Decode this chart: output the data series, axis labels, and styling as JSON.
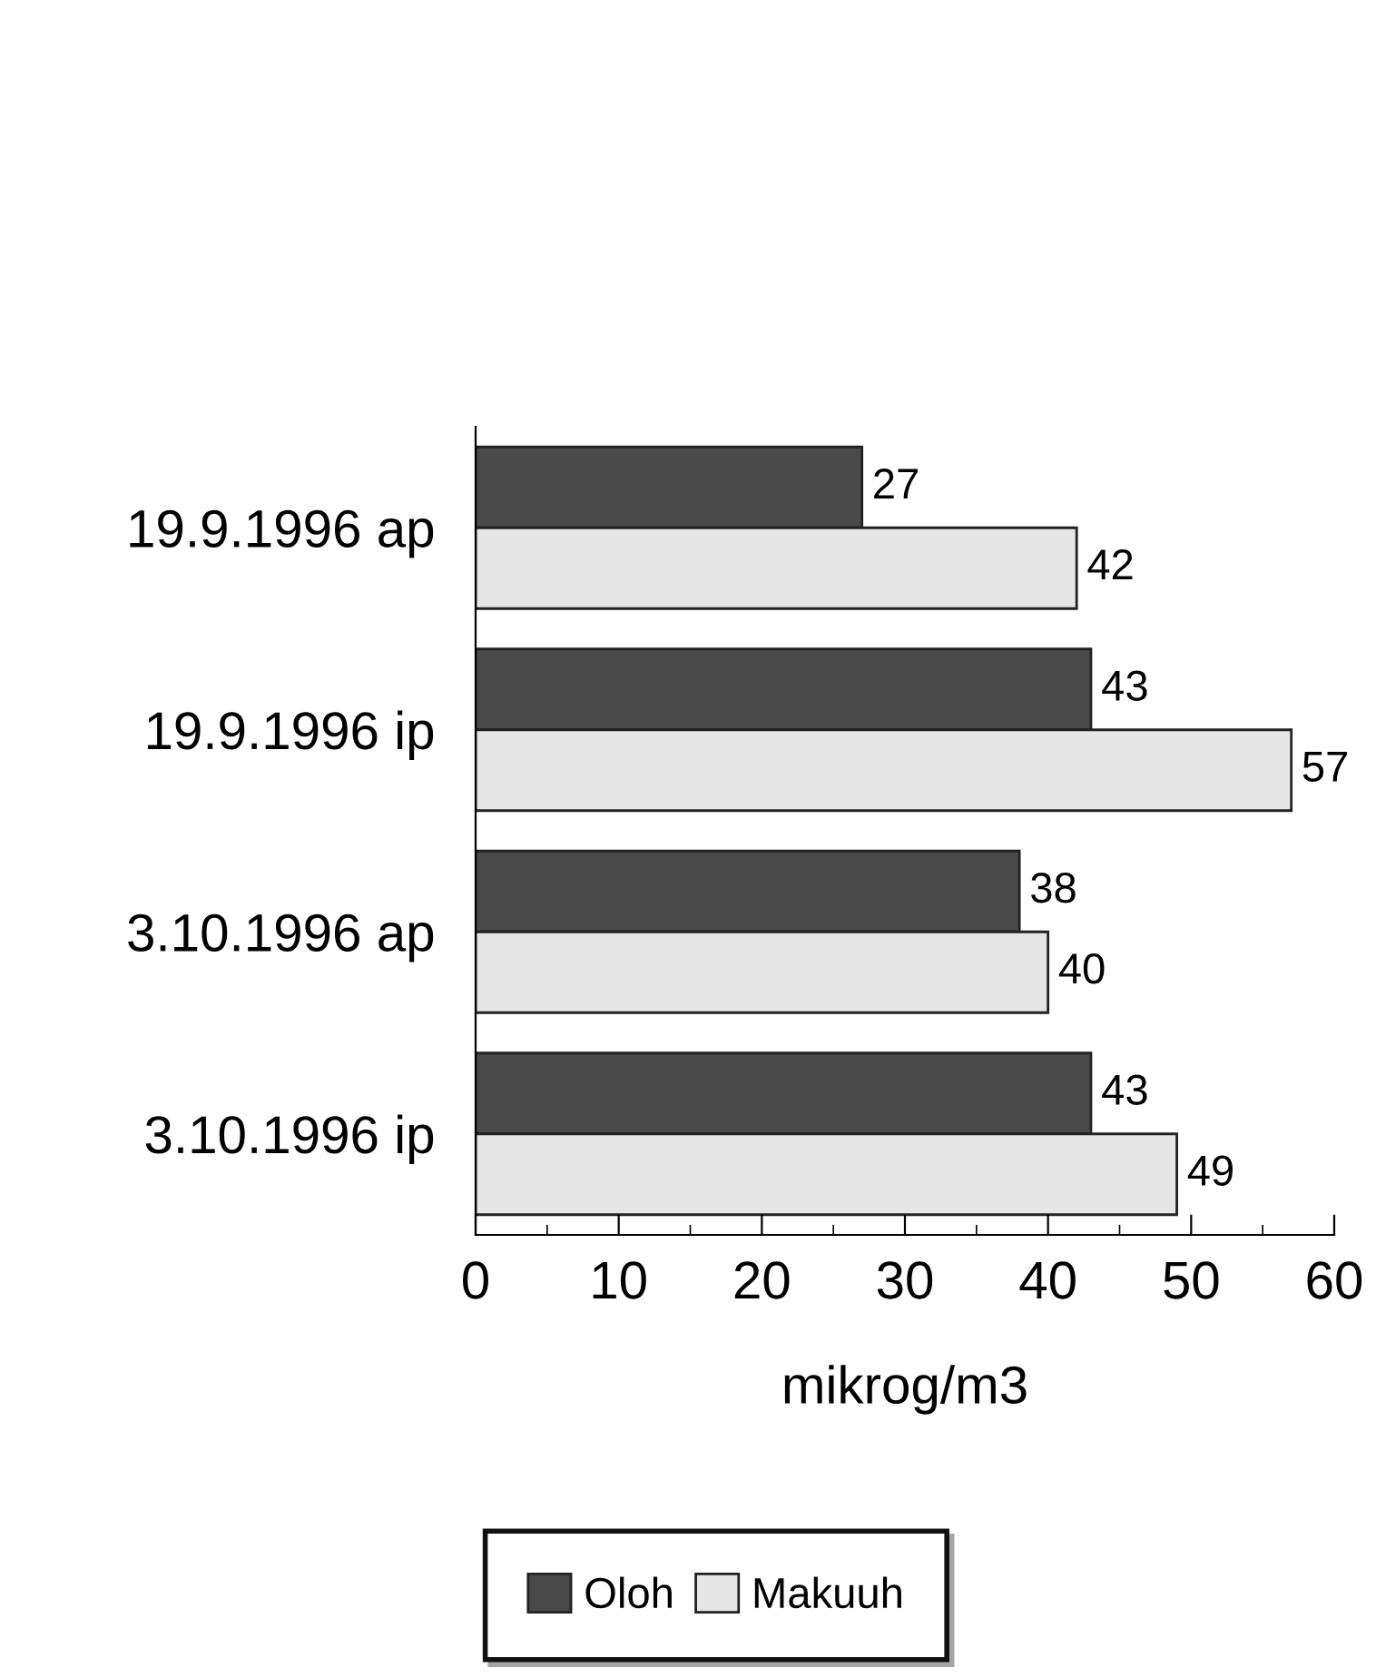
{
  "chart_data": {
    "type": "bar",
    "orientation": "horizontal",
    "xlabel": "mikrog/m3",
    "categories": [
      "19.9.1996 ap",
      "19.9.1996 ip",
      "3.10.1996 ap",
      "3.10.1996 ip"
    ],
    "series": [
      {
        "name": "Oloh",
        "color": "#4a4a4a",
        "values": [
          27,
          43,
          38,
          43
        ]
      },
      {
        "name": "Makuuh",
        "color": "#e6e6e6",
        "values": [
          42,
          57,
          40,
          49
        ]
      }
    ],
    "xlim": [
      0,
      60
    ],
    "xticks": [
      0,
      10,
      20,
      30,
      40,
      50,
      60
    ],
    "data_labels": true,
    "grid": false,
    "legend": "bottom"
  }
}
